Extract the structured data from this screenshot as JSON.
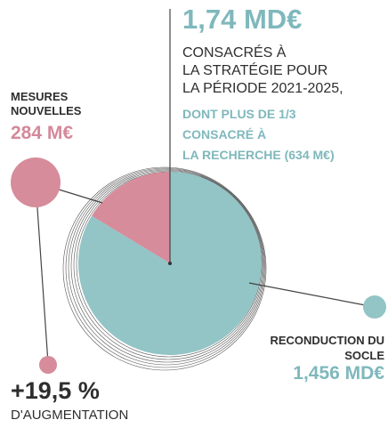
{
  "chart_data": {
    "type": "pie",
    "title": "1,74 MD€",
    "subtitle_lines": [
      "CONSACRÉS À",
      "LA STRATÉGIE POUR",
      "LA PÉRIODE 2021-2025,"
    ],
    "highlight_lines": [
      "DONT PLUS DE 1/3",
      "CONSACRÉ À",
      "LA RECHERCHE (634 M€)"
    ],
    "categories": [
      "MESURES NOUVELLES",
      "RECONDUCTION DU SOCLE"
    ],
    "values": [
      284,
      1456
    ],
    "value_labels": [
      "284 M€",
      "1,456 MD€"
    ],
    "colors": [
      "#d68c9b",
      "#93c4c6"
    ],
    "annotation": {
      "value": "+19,5 %",
      "label": "D'AUGMENTATION"
    }
  }
}
